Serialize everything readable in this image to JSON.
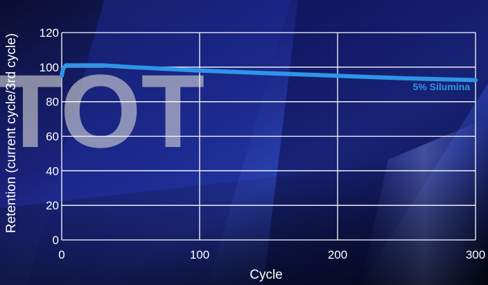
{
  "colors": {
    "series": "#2f95e6",
    "grid": "#ffffff",
    "text": "#ffffff",
    "watermark": "#d8d8d8"
  },
  "watermark": "TOT",
  "chart_data": {
    "type": "line",
    "xlabel": "Cycle",
    "ylabel": "Retention (current cycle/3rd cycle)",
    "xlim": [
      0,
      300
    ],
    "ylim": [
      0,
      120
    ],
    "xticks": [
      0,
      100,
      200,
      300
    ],
    "yticks": [
      0,
      20,
      40,
      60,
      80,
      100,
      120
    ],
    "grid": true,
    "series": [
      {
        "name": "5% Silumina",
        "x": [
          0,
          1,
          2,
          3,
          5,
          10,
          20,
          30,
          50,
          100,
          150,
          200,
          250,
          300
        ],
        "y": [
          95,
          99,
          100,
          101,
          101,
          101,
          101,
          101,
          100,
          98,
          96.5,
          95,
          93.5,
          92.5
        ]
      }
    ]
  }
}
